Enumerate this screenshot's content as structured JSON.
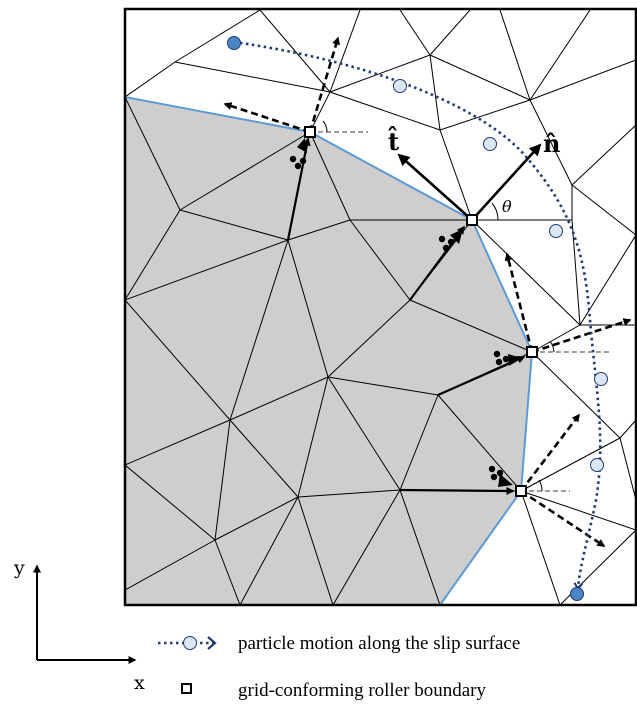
{
  "figure": {
    "labels": {
      "t_hat": "t̂",
      "n_hat": "n̂",
      "theta": "θ",
      "x_axis": "x",
      "y_axis": "y"
    },
    "legend": {
      "particle_motion": "particle motion along the slip surface",
      "roller_boundary": "grid-conforming roller boundary"
    },
    "colors": {
      "shaded_region": "#d0cdcd",
      "slip_surface": "#5b9bd5",
      "particle_path": "#1f3b73",
      "particle_fill_light": "#dbe7f3",
      "particle_fill_dark": "#4a86c5",
      "mesh_line": "#000000",
      "arrow": "#000000"
    }
  }
}
